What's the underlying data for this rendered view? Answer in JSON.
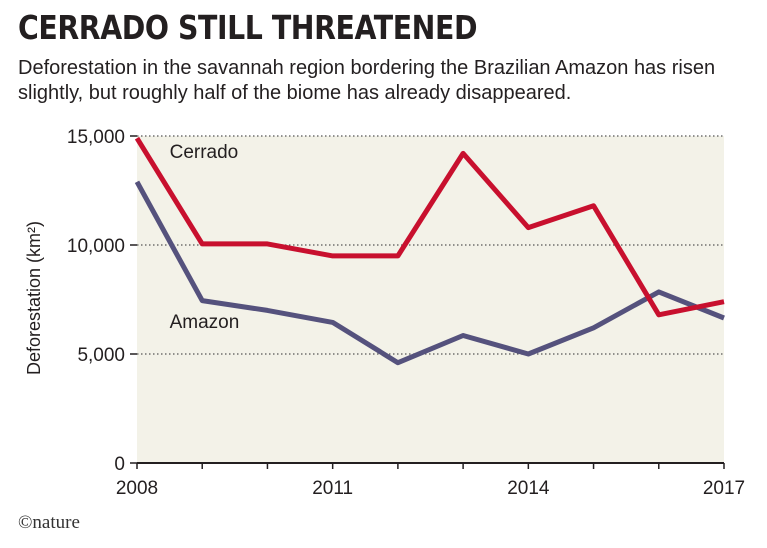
{
  "header": {
    "title": "CERRADO STILL THREATENED",
    "subtitle": "Deforestation in the savannah region bordering the Brazilian Amazon has risen slightly, but roughly half of the biome has already disappeared."
  },
  "footer": {
    "brand": "©nature"
  },
  "colors": {
    "cerrado": "#c8102e",
    "amazon": "#55527d",
    "plot_bg": "#f3f2e8",
    "grid": "#555555"
  },
  "chart_data": {
    "type": "line",
    "title": "CERRADO STILL THREATENED",
    "subtitle": "Deforestation in the savannah region bordering the Brazilian Amazon has risen slightly, but roughly half of the biome has already disappeared.",
    "xlabel": "",
    "ylabel": "Deforestation (km²)",
    "x": [
      2008,
      2009,
      2010,
      2011,
      2012,
      2013,
      2014,
      2015,
      2016,
      2017
    ],
    "xticks": [
      2008,
      2011,
      2014,
      2017
    ],
    "xtick_labels": [
      "2008",
      "2011",
      "2014",
      "2017"
    ],
    "yticks": [
      0,
      5000,
      10000,
      15000
    ],
    "ytick_labels": [
      "0",
      "5,000",
      "10,000",
      "15,000"
    ],
    "xlim": [
      2008,
      2017
    ],
    "ylim": [
      0,
      15000
    ],
    "grid": "horizontal dotted",
    "legend": "inline labels",
    "series": [
      {
        "name": "Cerrado",
        "color": "#c8102e",
        "values": [
          14900,
          10050,
          10050,
          9500,
          9500,
          14200,
          10800,
          11800,
          6800,
          7400
        ]
      },
      {
        "name": "Amazon",
        "color": "#55527d",
        "values": [
          12900,
          7450,
          7000,
          6450,
          4600,
          5850,
          5000,
          6200,
          7850,
          6650
        ]
      }
    ]
  }
}
